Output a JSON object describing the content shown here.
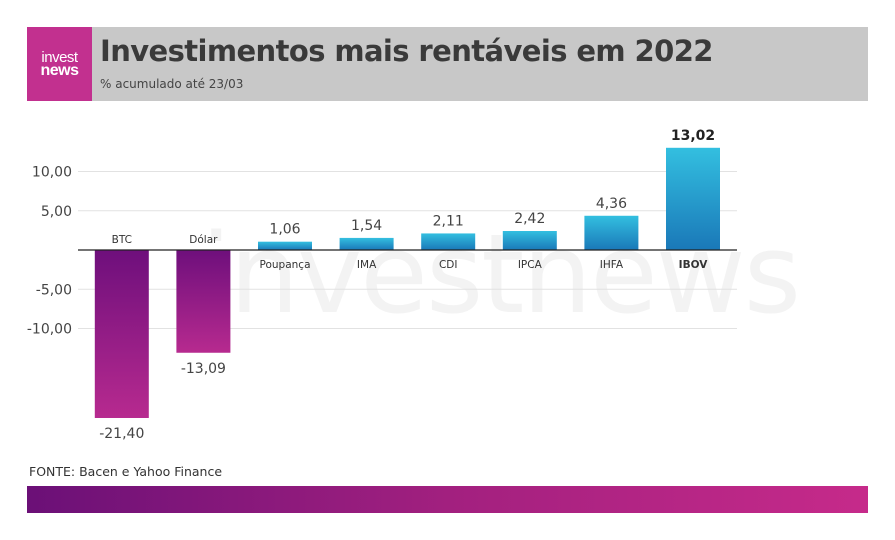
{
  "header": {
    "logo_line1": "invest",
    "logo_line2": "news",
    "title": "Investimentos mais rentáveis em 2022",
    "subtitle": "% acumulado até 23/03"
  },
  "source": "FONTE: Bacen e Yahoo Finance",
  "watermark": "investnews",
  "colors": {
    "header_bg": "#c8c8c8",
    "logo_bg": "#c2308f",
    "negative_top": "#6e0f7c",
    "negative_bottom": "#b72a8f",
    "positive_top": "#33bfe0",
    "positive_bottom": "#1a78b8",
    "footer_start": "#6b1077",
    "footer_end": "#c62a8a"
  },
  "chart_data": {
    "type": "bar",
    "title": "Investimentos mais rentáveis em 2022",
    "subtitle": "% acumulado até 23/03",
    "categories": [
      "BTC",
      "Dólar",
      "Poupança",
      "IMA",
      "CDI",
      "IPCA",
      "IHFA",
      "IBOV"
    ],
    "values": [
      -21.4,
      -13.09,
      1.06,
      1.54,
      2.11,
      2.42,
      4.36,
      13.02
    ],
    "value_labels": [
      "-21,40",
      "-13,09",
      "1,06",
      "1,54",
      "2,11",
      "2,42",
      "4,36",
      "13,02"
    ],
    "highlight": "IBOV",
    "y_ticks": [
      10,
      5,
      -5,
      -10
    ],
    "y_tick_labels": [
      "10,00",
      "5,00",
      "-5,00",
      "-10,00"
    ],
    "ylim": [
      -25,
      15
    ],
    "grid": true,
    "xlabel": "",
    "ylabel": ""
  }
}
